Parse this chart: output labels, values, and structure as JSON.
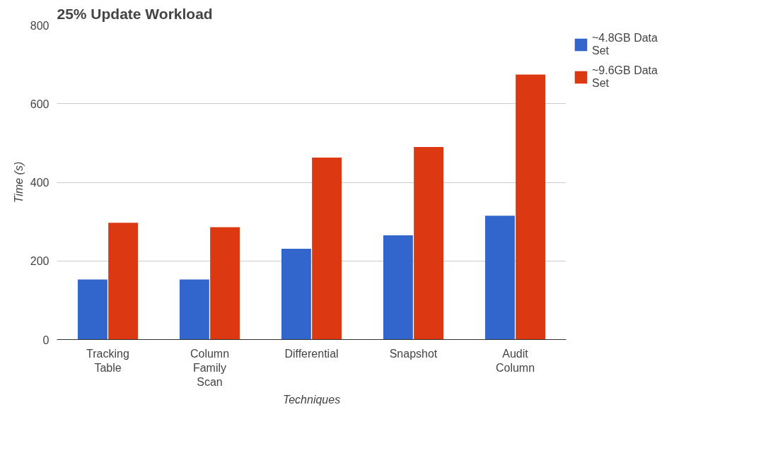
{
  "chart_data": {
    "type": "bar",
    "title": "25% Update Workload",
    "xlabel": "Techniques",
    "ylabel": "Time (s)",
    "categories": [
      "Tracking Table",
      "Column Family Scan",
      "Differential",
      "Snapshot",
      "Audit Column"
    ],
    "series": [
      {
        "name": "~4.8GB Data Set",
        "color": "#3366cc",
        "values": [
          153,
          153,
          231,
          265,
          315
        ]
      },
      {
        "name": "~9.6GB Data Set",
        "color": "#dc3912",
        "values": [
          297,
          286,
          463,
          490,
          674
        ]
      }
    ],
    "ylim": [
      0,
      800
    ],
    "yticks": [
      0,
      200,
      400,
      600,
      800
    ],
    "grid": "y",
    "legend": "right"
  }
}
